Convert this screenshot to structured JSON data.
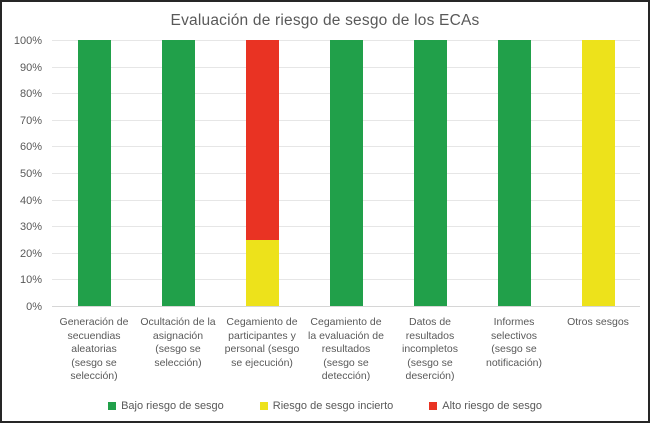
{
  "frame": {
    "background": "#FFFFFF",
    "border_color": "#262626"
  },
  "chart_data": {
    "type": "bar",
    "variant": "stacked-100-percent",
    "title": "Evaluación de riesgo de sesgo de los ECAs",
    "categories": [
      "Generación de secuendias aleatorias (sesgo se selección)",
      "Ocultación de la asignación (sesgo se selección)",
      "Cegamiento de participantes y personal (sesgo se ejecución)",
      "Cegamiento de la evaluación de resultados (sesgo se detección)",
      "Datos de resultados incompletos (sesgo se deserción)",
      "Informes selectivos (sesgo se notificación)",
      "Otros sesgos"
    ],
    "series": [
      {
        "name": "Bajo riesgo de sesgo",
        "color": "#21A04A",
        "values": [
          100,
          100,
          0,
          100,
          100,
          100,
          0
        ]
      },
      {
        "name": "Riesgo de sesgo incierto",
        "color": "#EDE21B",
        "values": [
          0,
          0,
          25,
          0,
          0,
          0,
          100
        ]
      },
      {
        "name": "Alto riesgo de sesgo",
        "color": "#E93323",
        "values": [
          0,
          0,
          75,
          0,
          0,
          0,
          0
        ]
      }
    ],
    "y_ticks": [
      "0%",
      "10%",
      "20%",
      "30%",
      "40%",
      "50%",
      "60%",
      "70%",
      "80%",
      "90%",
      "100%"
    ],
    "ylim": [
      0,
      100
    ],
    "xlabel": "",
    "ylabel": "",
    "grid": true,
    "legend_position": "bottom",
    "text_color": "#595959",
    "gridline_color": "#E6E6E6",
    "axis_line_color": "#D6D6D6"
  }
}
